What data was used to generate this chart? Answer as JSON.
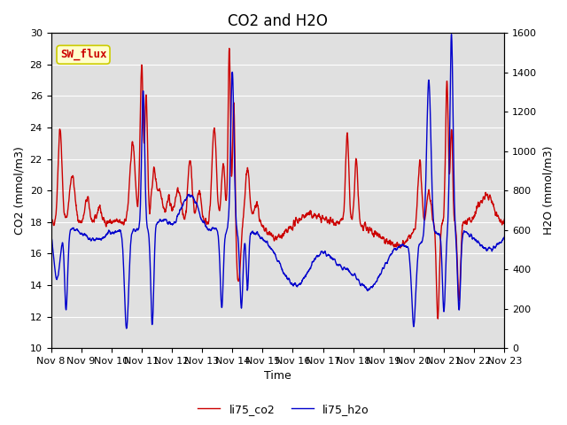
{
  "title": "CO2 and H2O",
  "xlabel": "Time",
  "ylabel_left": "CO2 (mmol/m3)",
  "ylabel_right": "H2O (mmol/m3)",
  "ylim_left": [
    10,
    30
  ],
  "ylim_right": [
    0,
    1600
  ],
  "yticks_left": [
    10,
    12,
    14,
    16,
    18,
    20,
    22,
    24,
    26,
    28,
    30
  ],
  "yticks_right": [
    0,
    200,
    400,
    600,
    800,
    1000,
    1200,
    1400,
    1600
  ],
  "xtick_labels": [
    "Nov 8",
    "Nov 9",
    "Nov 10",
    "Nov 11",
    "Nov 12",
    "Nov 13",
    "Nov 14",
    "Nov 15",
    "Nov 16",
    "Nov 17",
    "Nov 18",
    "Nov 19",
    "Nov 20",
    "Nov 21",
    "Nov 22",
    "Nov 23"
  ],
  "color_co2": "#cc0000",
  "color_h2o": "#0000cc",
  "label_co2": "li75_co2",
  "label_h2o": "li75_h2o",
  "background_color": "#e0e0e0",
  "annotation_text": "SW_flux",
  "annotation_color": "#cc0000",
  "annotation_bg": "#ffffcc",
  "annotation_border": "#cccc00",
  "title_fontsize": 12,
  "axis_fontsize": 9,
  "tick_fontsize": 8,
  "legend_fontsize": 9,
  "linewidth": 1.0
}
